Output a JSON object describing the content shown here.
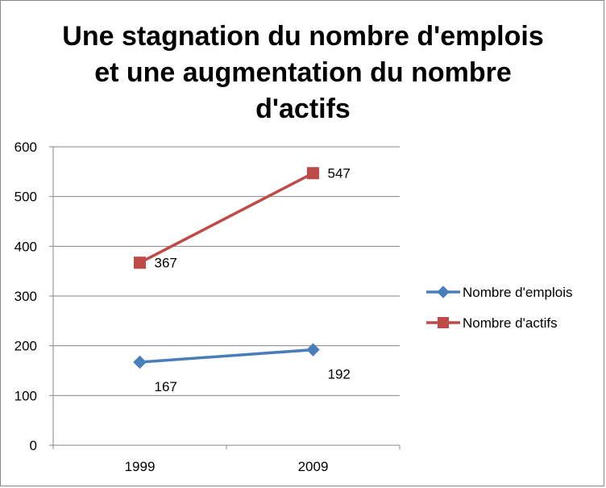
{
  "chart_data": {
    "type": "line",
    "title_lines": [
      "Une stagnation du nombre d'emplois",
      "et une augmentation du nombre",
      "d'actifs"
    ],
    "categories": [
      "1999",
      "2009"
    ],
    "series": [
      {
        "name": "Nombre d'emplois",
        "values": [
          167,
          192
        ],
        "color": "#4A7EBB",
        "marker": "diamond"
      },
      {
        "name": "Nombre d'actifs",
        "values": [
          367,
          547
        ],
        "color": "#BE4B48",
        "marker": "square"
      }
    ],
    "ylim": [
      0,
      600
    ],
    "yticks": [
      0,
      100,
      200,
      300,
      400,
      500,
      600
    ],
    "grid": true,
    "legend_position": "right",
    "xlabel": "",
    "ylabel": ""
  }
}
